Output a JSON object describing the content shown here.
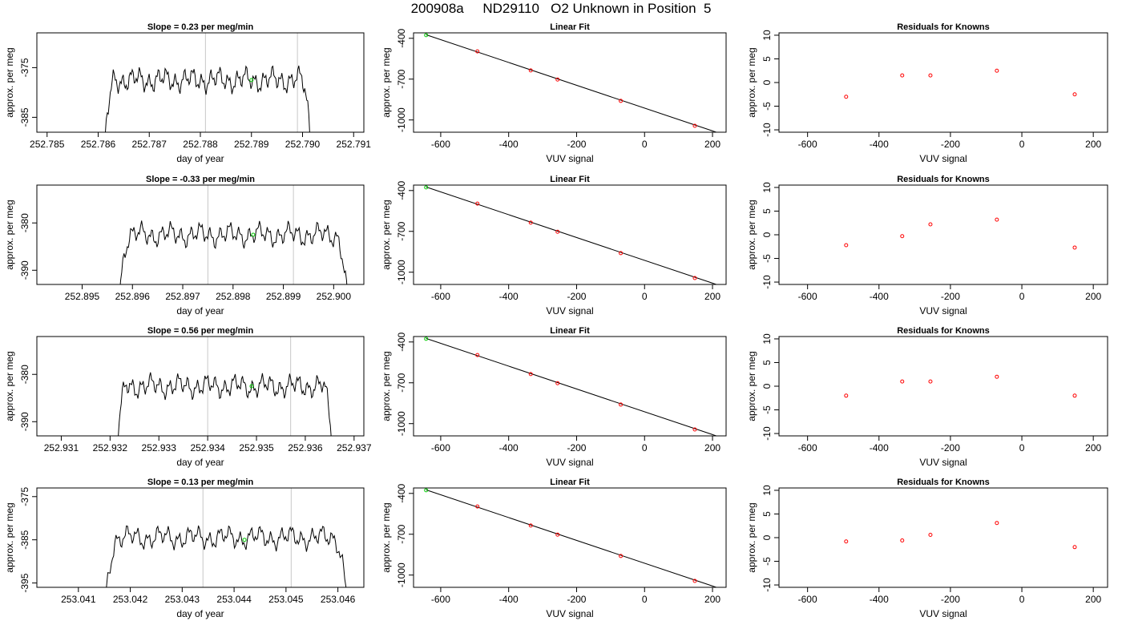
{
  "page_title": "200908a     ND29110   O2 Unknown in Position  5",
  "colors": {
    "trace": "#000000",
    "known_marker": "#ff0000",
    "unknown_marker": "#00cc00",
    "marker_line": "#c8c8c8",
    "fit_line": "#000000"
  },
  "chart_data": [
    {
      "type": "line",
      "row": 0,
      "panel": "time-series",
      "title": "Slope =  0.23  per meg/min",
      "xlabel": "day of year",
      "ylabel": "approx. per meg",
      "xlim": [
        252.7848,
        252.7912
      ],
      "ylim": [
        -388,
        -368
      ],
      "y_reversed": true,
      "xticks": [
        "252.785",
        "252.786",
        "252.787",
        "252.788",
        "252.789",
        "252.790",
        "252.791"
      ],
      "yticks": [
        "-375",
        "-385"
      ],
      "trace": {
        "start": 252.7861,
        "end": 252.7902,
        "level": -377.5,
        "amp": 2.6
      },
      "marker_lines": [
        252.7881,
        252.7899
      ],
      "unknown_point": {
        "x": 252.789,
        "y": -377.5
      }
    },
    {
      "type": "scatter",
      "row": 0,
      "panel": "fit",
      "title": "Linear Fit",
      "xlabel": "VUV signal",
      "ylabel": "approx. per meg",
      "xlim": [
        -680,
        240
      ],
      "ylim": [
        -1090,
        -360
      ],
      "y_reversed": true,
      "xticks": [
        "-600",
        "-400",
        "-200",
        "0",
        "200"
      ],
      "yticks": [
        "-400",
        "-700",
        "-1000"
      ],
      "known_points": [
        {
          "x": -492,
          "y": -496
        },
        {
          "x": -335,
          "y": -636
        },
        {
          "x": -256,
          "y": -703
        },
        {
          "x": -70,
          "y": -860
        },
        {
          "x": 148,
          "y": -1043
        }
      ],
      "unknown_point": {
        "x": -643,
        "y": -377
      },
      "fit_line": {
        "x1": -643,
        "y1": -374,
        "x2": 240,
        "y2": -1114
      }
    },
    {
      "type": "scatter",
      "row": 0,
      "panel": "residuals",
      "title": "Residuals for Knowns",
      "xlabel": "VUV signal",
      "ylabel": "approx. per meg",
      "xlim": [
        -680,
        240
      ],
      "ylim": [
        -10.5,
        10.5
      ],
      "xticks": [
        "-600",
        "-400",
        "-200",
        "0",
        "200"
      ],
      "yticks": [
        "-10",
        "-5",
        "0",
        "5",
        "10"
      ],
      "points": [
        {
          "x": -492,
          "y": -3.0
        },
        {
          "x": -335,
          "y": 1.5
        },
        {
          "x": -256,
          "y": 1.5
        },
        {
          "x": -70,
          "y": 2.5
        },
        {
          "x": 148,
          "y": -2.5
        }
      ]
    },
    {
      "type": "line",
      "row": 1,
      "panel": "time-series",
      "title": "Slope =  -0.33  per meg/min",
      "xlabel": "day of year",
      "ylabel": "approx. per meg",
      "xlim": [
        252.8941,
        252.9006
      ],
      "ylim": [
        -393,
        -372
      ],
      "y_reversed": true,
      "xticks": [
        "252.895",
        "252.896",
        "252.897",
        "252.898",
        "252.899",
        "252.900"
      ],
      "yticks": [
        "-380",
        "-390"
      ],
      "trace": {
        "start": 252.8957,
        "end": 252.9003,
        "level": -382.5,
        "amp": 2.6
      },
      "marker_lines": [
        252.8975,
        252.8992
      ],
      "unknown_point": {
        "x": 252.8984,
        "y": -382.5
      }
    },
    {
      "type": "scatter",
      "row": 1,
      "panel": "fit",
      "title": "Linear Fit",
      "xlabel": "VUV signal",
      "ylabel": "approx. per meg",
      "xlim": [
        -680,
        240
      ],
      "ylim": [
        -1090,
        -360
      ],
      "y_reversed": true,
      "xticks": [
        "-600",
        "-400",
        "-200",
        "0",
        "200"
      ],
      "yticks": [
        "-400",
        "-700",
        "-1000"
      ],
      "known_points": [
        {
          "x": -492,
          "y": -496
        },
        {
          "x": -335,
          "y": -636
        },
        {
          "x": -256,
          "y": -703
        },
        {
          "x": -70,
          "y": -860
        },
        {
          "x": 148,
          "y": -1043
        }
      ],
      "unknown_point": {
        "x": -643,
        "y": -377
      },
      "fit_line": {
        "x1": -643,
        "y1": -374,
        "x2": 240,
        "y2": -1114
      }
    },
    {
      "type": "scatter",
      "row": 1,
      "panel": "residuals",
      "title": "Residuals for Knowns",
      "xlabel": "VUV signal",
      "ylabel": "approx. per meg",
      "xlim": [
        -680,
        240
      ],
      "ylim": [
        -10.5,
        10.5
      ],
      "xticks": [
        "-600",
        "-400",
        "-200",
        "0",
        "200"
      ],
      "yticks": [
        "-10",
        "-5",
        "0",
        "5",
        "10"
      ],
      "points": [
        {
          "x": -492,
          "y": -2.2
        },
        {
          "x": -335,
          "y": -0.3
        },
        {
          "x": -256,
          "y": 2.2
        },
        {
          "x": -70,
          "y": 3.2
        },
        {
          "x": 148,
          "y": -2.7
        }
      ]
    },
    {
      "type": "line",
      "row": 2,
      "panel": "time-series",
      "title": "Slope =  0.56  per meg/min",
      "xlabel": "day of year",
      "ylabel": "approx. per meg",
      "xlim": [
        252.9305,
        252.9372
      ],
      "ylim": [
        -393,
        -372
      ],
      "y_reversed": true,
      "xticks": [
        "252.931",
        "252.932",
        "252.933",
        "252.934",
        "252.935",
        "252.936",
        "252.937"
      ],
      "yticks": [
        "-380",
        "-390"
      ],
      "trace": {
        "start": 252.9321,
        "end": 252.9366,
        "level": -382.5,
        "amp": 2.6
      },
      "marker_lines": [
        252.934,
        252.9357
      ],
      "unknown_point": {
        "x": 252.9349,
        "y": -382.5
      }
    },
    {
      "type": "scatter",
      "row": 2,
      "panel": "fit",
      "title": "Linear Fit",
      "xlabel": "VUV signal",
      "ylabel": "approx. per meg",
      "xlim": [
        -680,
        240
      ],
      "ylim": [
        -1090,
        -360
      ],
      "y_reversed": true,
      "xticks": [
        "-600",
        "-400",
        "-200",
        "0",
        "200"
      ],
      "yticks": [
        "-400",
        "-700",
        "-1000"
      ],
      "known_points": [
        {
          "x": -492,
          "y": -496
        },
        {
          "x": -335,
          "y": -636
        },
        {
          "x": -256,
          "y": -703
        },
        {
          "x": -70,
          "y": -860
        },
        {
          "x": 148,
          "y": -1043
        }
      ],
      "unknown_point": {
        "x": -643,
        "y": -377
      },
      "fit_line": {
        "x1": -643,
        "y1": -374,
        "x2": 240,
        "y2": -1114
      }
    },
    {
      "type": "scatter",
      "row": 2,
      "panel": "residuals",
      "title": "Residuals for Knowns",
      "xlabel": "VUV signal",
      "ylabel": "approx. per meg",
      "xlim": [
        -680,
        240
      ],
      "ylim": [
        -10.5,
        10.5
      ],
      "xticks": [
        "-600",
        "-400",
        "-200",
        "0",
        "200"
      ],
      "yticks": [
        "-10",
        "-5",
        "0",
        "5",
        "10"
      ],
      "points": [
        {
          "x": -492,
          "y": -2.0
        },
        {
          "x": -335,
          "y": 1.0
        },
        {
          "x": -256,
          "y": 1.0
        },
        {
          "x": -70,
          "y": 2.0
        },
        {
          "x": 148,
          "y": -2.0
        }
      ]
    },
    {
      "type": "line",
      "row": 3,
      "panel": "time-series",
      "title": "Slope =  0.13  per meg/min",
      "xlabel": "day of year",
      "ylabel": "approx. per meg",
      "xlim": [
        253.0402,
        253.0465
      ],
      "ylim": [
        -396,
        -373
      ],
      "y_reversed": true,
      "xticks": [
        "253.041",
        "253.042",
        "253.043",
        "253.044",
        "253.045",
        "253.046"
      ],
      "yticks": [
        "-375",
        "-385",
        "-395"
      ],
      "trace": {
        "start": 253.0415,
        "end": 253.0462,
        "level": -384.5,
        "amp": 2.8
      },
      "marker_lines": [
        253.0434,
        253.0451
      ],
      "unknown_point": {
        "x": 253.0442,
        "y": -385.0
      }
    },
    {
      "type": "scatter",
      "row": 3,
      "panel": "fit",
      "title": "Linear Fit",
      "xlabel": "VUV signal",
      "ylabel": "approx. per meg",
      "xlim": [
        -680,
        240
      ],
      "ylim": [
        -1090,
        -360
      ],
      "y_reversed": true,
      "xticks": [
        "-600",
        "-400",
        "-200",
        "0",
        "200"
      ],
      "yticks": [
        "-400",
        "-700",
        "-1000"
      ],
      "known_points": [
        {
          "x": -492,
          "y": -496
        },
        {
          "x": -335,
          "y": -636
        },
        {
          "x": -256,
          "y": -703
        },
        {
          "x": -70,
          "y": -860
        },
        {
          "x": 148,
          "y": -1043
        }
      ],
      "unknown_point": {
        "x": -643,
        "y": -377
      },
      "fit_line": {
        "x1": -643,
        "y1": -374,
        "x2": 240,
        "y2": -1114
      }
    },
    {
      "type": "scatter",
      "row": 3,
      "panel": "residuals",
      "title": "Residuals for Knowns",
      "xlabel": "VUV signal",
      "ylabel": "approx. per meg",
      "xlim": [
        -680,
        240
      ],
      "ylim": [
        -10.5,
        10.5
      ],
      "xticks": [
        "-600",
        "-400",
        "-200",
        "0",
        "200"
      ],
      "yticks": [
        "-10",
        "-5",
        "0",
        "5",
        "10"
      ],
      "points": [
        {
          "x": -492,
          "y": -0.8
        },
        {
          "x": -335,
          "y": -0.6
        },
        {
          "x": -256,
          "y": 0.6
        },
        {
          "x": -70,
          "y": 3.1
        },
        {
          "x": 148,
          "y": -2.0
        }
      ]
    }
  ]
}
